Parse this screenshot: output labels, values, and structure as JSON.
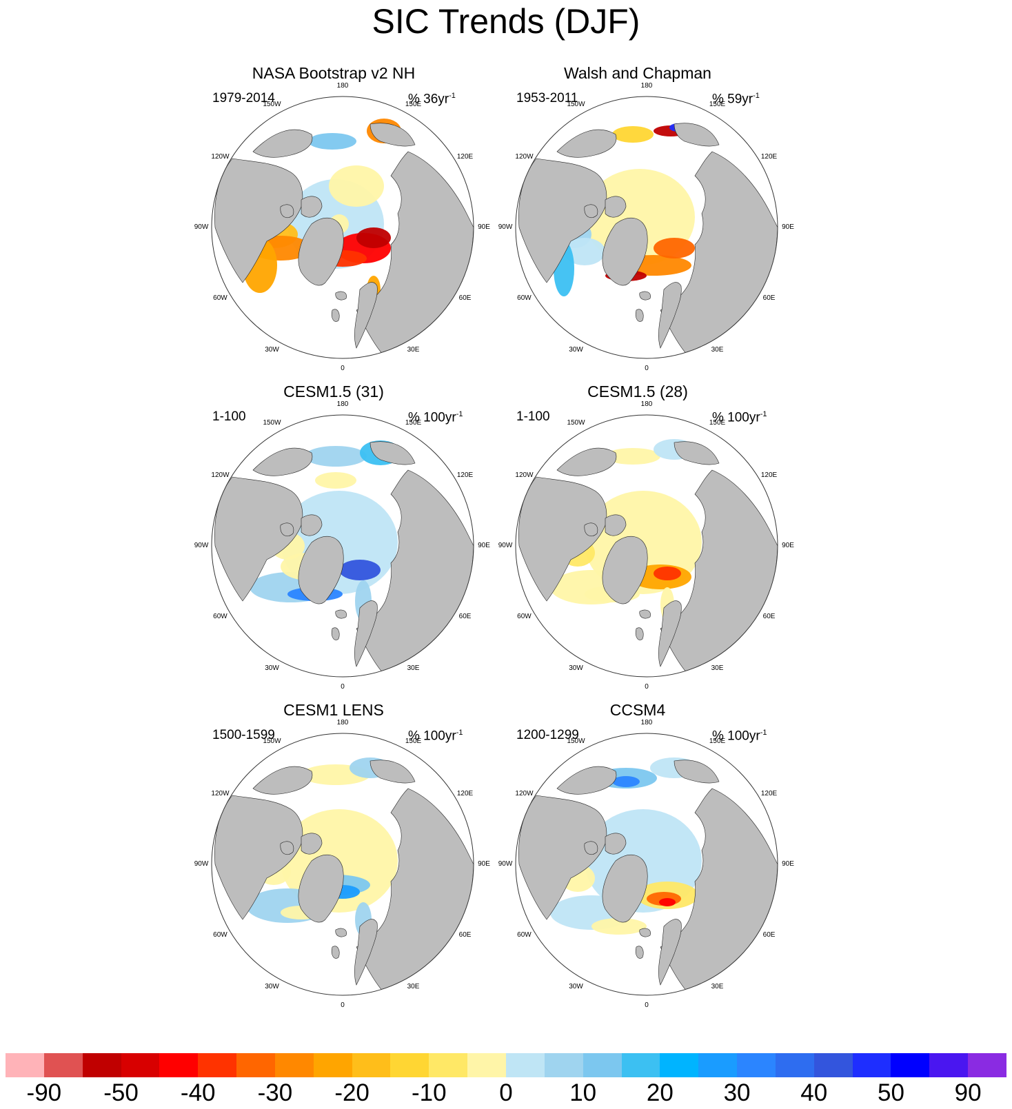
{
  "title": "SIC Trends (DJF)",
  "lon_labels": [
    "180",
    "150W",
    "150E",
    "120W",
    "120E",
    "90W",
    "90E",
    "60W",
    "60E",
    "30W",
    "30E",
    "0"
  ],
  "panels": [
    {
      "title": "NASA Bootstrap v2 NH",
      "period": "1979-2014",
      "units_main": "% 36yr",
      "units_sup": "-1",
      "pattern": "obs_nasa"
    },
    {
      "title": "Walsh and Chapman",
      "period": "1953-2011",
      "units_main": "% 59yr",
      "units_sup": "-1",
      "pattern": "obs_walsh"
    },
    {
      "title": "CESM1.5 (31)",
      "period": "1-100",
      "units_main": "% 100yr",
      "units_sup": "-1",
      "pattern": "model_blue"
    },
    {
      "title": "CESM1.5 (28)",
      "period": "1-100",
      "units_main": "% 100yr",
      "units_sup": "-1",
      "pattern": "model_yellow"
    },
    {
      "title": "CESM1 LENS",
      "period": "1500-1599",
      "units_main": "% 100yr",
      "units_sup": "-1",
      "pattern": "model_mixed"
    },
    {
      "title": "CCSM4",
      "period": "1200-1299",
      "units_main": "% 100yr",
      "units_sup": "-1",
      "pattern": "model_ccsm4"
    }
  ],
  "colorbar": {
    "colors": [
      "#ffb3b8",
      "#e05252",
      "#c00000",
      "#d80000",
      "#ff0000",
      "#ff3300",
      "#ff6600",
      "#ff8800",
      "#ffa500",
      "#ffbe1a",
      "#ffd633",
      "#ffe866",
      "#fff5a8",
      "#bfe5f5",
      "#9fd4ef",
      "#7cc7ef",
      "#3cc0f2",
      "#00b4ff",
      "#1a9cff",
      "#2b85ff",
      "#2e6df0",
      "#3355dd",
      "#1e2eff",
      "#0000ff",
      "#4a16f0",
      "#8a2be2"
    ],
    "labels": [
      "-90",
      "-50",
      "-40",
      "-30",
      "-20",
      "-10",
      "0",
      "10",
      "20",
      "30",
      "40",
      "50",
      "90"
    ]
  },
  "colors": {
    "land": "#bdbdbd",
    "ocean": "#ffffff",
    "coast": "#222222"
  }
}
